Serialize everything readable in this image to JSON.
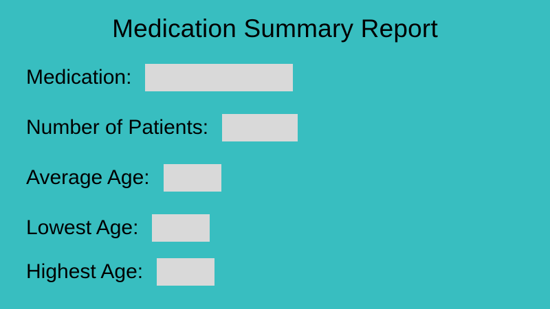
{
  "title": "Medication Summary Report",
  "colors": {
    "background": "#38BEC0",
    "field_box": "#D9D9D9",
    "text": "#000000"
  },
  "fields": [
    {
      "label": "Medication:",
      "value": ""
    },
    {
      "label": "Number of Patients:",
      "value": ""
    },
    {
      "label": "Average Age:",
      "value": ""
    },
    {
      "label": "Lowest Age:",
      "value": ""
    },
    {
      "label": "Highest Age:",
      "value": ""
    }
  ]
}
